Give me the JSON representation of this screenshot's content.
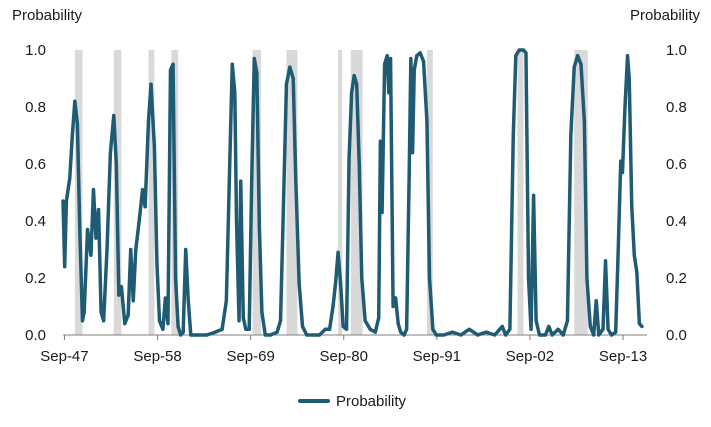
{
  "chart_data": {
    "type": "line",
    "title": "",
    "ylabel_left": "Probability",
    "ylabel_right": "Probability",
    "ylim": [
      0,
      1
    ],
    "yticks": [
      "0.0",
      "0.2",
      "0.4",
      "0.6",
      "0.8",
      "1.0"
    ],
    "xlim": [
      1947.5,
      2016.5
    ],
    "xticks": [
      {
        "label": "Sep-47",
        "x": 1947.67
      },
      {
        "label": "Sep-58",
        "x": 1958.67
      },
      {
        "label": "Sep-69",
        "x": 1969.67
      },
      {
        "label": "Sep-80",
        "x": 1980.67
      },
      {
        "label": "Sep-91",
        "x": 1991.67
      },
      {
        "label": "Sep-02",
        "x": 2002.67
      },
      {
        "label": "Sep-13",
        "x": 2013.67
      }
    ],
    "recession_shading_color": "#d9d9d9",
    "recessions": [
      [
        1948.9,
        1949.8
      ],
      [
        1953.5,
        1954.4
      ],
      [
        1957.6,
        1958.3
      ],
      [
        1960.3,
        1961.1
      ],
      [
        1969.9,
        1970.9
      ],
      [
        1973.9,
        1975.2
      ],
      [
        1980.0,
        1980.5
      ],
      [
        1981.5,
        1982.9
      ],
      [
        1990.5,
        1991.2
      ],
      [
        2001.2,
        2001.9
      ],
      [
        2007.9,
        2009.5
      ]
    ],
    "series": [
      {
        "name": "Probability",
        "color": "#1f5b73",
        "points": [
          [
            1947.5,
            0.47
          ],
          [
            1947.7,
            0.24
          ],
          [
            1947.9,
            0.47
          ],
          [
            1948.3,
            0.55
          ],
          [
            1948.6,
            0.7
          ],
          [
            1948.9,
            0.82
          ],
          [
            1949.2,
            0.74
          ],
          [
            1949.5,
            0.35
          ],
          [
            1949.8,
            0.05
          ],
          [
            1950.0,
            0.08
          ],
          [
            1950.4,
            0.37
          ],
          [
            1950.8,
            0.28
          ],
          [
            1951.1,
            0.51
          ],
          [
            1951.4,
            0.34
          ],
          [
            1951.7,
            0.44
          ],
          [
            1952.0,
            0.08
          ],
          [
            1952.3,
            0.05
          ],
          [
            1952.7,
            0.3
          ],
          [
            1953.1,
            0.64
          ],
          [
            1953.5,
            0.77
          ],
          [
            1953.8,
            0.6
          ],
          [
            1954.1,
            0.14
          ],
          [
            1954.4,
            0.17
          ],
          [
            1954.8,
            0.04
          ],
          [
            1955.2,
            0.07
          ],
          [
            1955.5,
            0.3
          ],
          [
            1955.8,
            0.12
          ],
          [
            1956.1,
            0.3
          ],
          [
            1956.5,
            0.4
          ],
          [
            1956.9,
            0.51
          ],
          [
            1957.2,
            0.45
          ],
          [
            1957.6,
            0.75
          ],
          [
            1957.9,
            0.88
          ],
          [
            1958.3,
            0.66
          ],
          [
            1958.6,
            0.25
          ],
          [
            1958.9,
            0.05
          ],
          [
            1959.3,
            0.02
          ],
          [
            1959.6,
            0.13
          ],
          [
            1959.9,
            0.04
          ],
          [
            1960.2,
            0.93
          ],
          [
            1960.5,
            0.95
          ],
          [
            1960.8,
            0.2
          ],
          [
            1961.1,
            0.03
          ],
          [
            1961.4,
            0.0
          ],
          [
            1961.7,
            0.01
          ],
          [
            1962.0,
            0.3
          ],
          [
            1962.3,
            0.12
          ],
          [
            1962.6,
            0.0
          ],
          [
            1963.5,
            0.0
          ],
          [
            1964.5,
            0.0
          ],
          [
            1965.5,
            0.01
          ],
          [
            1966.3,
            0.02
          ],
          [
            1966.8,
            0.12
          ],
          [
            1967.2,
            0.6
          ],
          [
            1967.5,
            0.95
          ],
          [
            1967.8,
            0.85
          ],
          [
            1968.0,
            0.4
          ],
          [
            1968.3,
            0.05
          ],
          [
            1968.5,
            0.54
          ],
          [
            1968.8,
            0.06
          ],
          [
            1969.1,
            0.02
          ],
          [
            1969.5,
            0.02
          ],
          [
            1969.8,
            0.55
          ],
          [
            1970.1,
            0.97
          ],
          [
            1970.4,
            0.92
          ],
          [
            1970.7,
            0.38
          ],
          [
            1971.0,
            0.08
          ],
          [
            1971.4,
            0.0
          ],
          [
            1972.0,
            0.0
          ],
          [
            1972.8,
            0.01
          ],
          [
            1973.2,
            0.05
          ],
          [
            1973.5,
            0.4
          ],
          [
            1973.9,
            0.88
          ],
          [
            1974.3,
            0.94
          ],
          [
            1974.7,
            0.9
          ],
          [
            1975.0,
            0.55
          ],
          [
            1975.4,
            0.18
          ],
          [
            1975.8,
            0.03
          ],
          [
            1976.3,
            0.0
          ],
          [
            1977.0,
            0.0
          ],
          [
            1977.8,
            0.0
          ],
          [
            1978.5,
            0.02
          ],
          [
            1979.0,
            0.02
          ],
          [
            1979.4,
            0.1
          ],
          [
            1979.7,
            0.18
          ],
          [
            1980.0,
            0.29
          ],
          [
            1980.3,
            0.18
          ],
          [
            1980.6,
            0.03
          ],
          [
            1981.0,
            0.02
          ],
          [
            1981.3,
            0.62
          ],
          [
            1981.6,
            0.85
          ],
          [
            1981.9,
            0.91
          ],
          [
            1982.2,
            0.88
          ],
          [
            1982.5,
            0.6
          ],
          [
            1982.8,
            0.2
          ],
          [
            1983.2,
            0.05
          ],
          [
            1983.8,
            0.02
          ],
          [
            1984.4,
            0.01
          ],
          [
            1984.8,
            0.06
          ],
          [
            1985.0,
            0.68
          ],
          [
            1985.2,
            0.43
          ],
          [
            1985.5,
            0.95
          ],
          [
            1985.8,
            0.98
          ],
          [
            1986.0,
            0.85
          ],
          [
            1986.2,
            0.97
          ],
          [
            1986.5,
            0.1
          ],
          [
            1986.8,
            0.13
          ],
          [
            1987.1,
            0.04
          ],
          [
            1987.4,
            0.01
          ],
          [
            1987.8,
            0.0
          ],
          [
            1988.1,
            0.02
          ],
          [
            1988.4,
            0.56
          ],
          [
            1988.6,
            0.97
          ],
          [
            1988.8,
            0.64
          ],
          [
            1989.0,
            0.93
          ],
          [
            1989.3,
            0.98
          ],
          [
            1989.7,
            0.99
          ],
          [
            1990.1,
            0.96
          ],
          [
            1990.5,
            0.75
          ],
          [
            1990.8,
            0.2
          ],
          [
            1991.2,
            0.02
          ],
          [
            1991.6,
            0.0
          ],
          [
            1992.5,
            0.0
          ],
          [
            1993.5,
            0.01
          ],
          [
            1994.5,
            0.0
          ],
          [
            1995.5,
            0.02
          ],
          [
            1996.5,
            0.0
          ],
          [
            1997.5,
            0.01
          ],
          [
            1998.5,
            0.0
          ],
          [
            1999.4,
            0.03
          ],
          [
            1999.8,
            0.0
          ],
          [
            2000.3,
            0.02
          ],
          [
            2000.7,
            0.7
          ],
          [
            2001.0,
            0.98
          ],
          [
            2001.4,
            1.0
          ],
          [
            2001.9,
            1.0
          ],
          [
            2002.2,
            0.99
          ],
          [
            2002.5,
            0.2
          ],
          [
            2002.8,
            0.02
          ],
          [
            2003.1,
            0.49
          ],
          [
            2003.4,
            0.05
          ],
          [
            2003.8,
            0.0
          ],
          [
            2004.5,
            0.0
          ],
          [
            2004.9,
            0.03
          ],
          [
            2005.3,
            0.0
          ],
          [
            2006.0,
            0.02
          ],
          [
            2006.6,
            0.0
          ],
          [
            2007.1,
            0.05
          ],
          [
            2007.5,
            0.7
          ],
          [
            2007.9,
            0.94
          ],
          [
            2008.3,
            0.98
          ],
          [
            2008.7,
            0.95
          ],
          [
            2009.1,
            0.75
          ],
          [
            2009.4,
            0.2
          ],
          [
            2009.8,
            0.03
          ],
          [
            2010.2,
            0.0
          ],
          [
            2010.5,
            0.12
          ],
          [
            2010.8,
            0.0
          ],
          [
            2011.3,
            0.02
          ],
          [
            2011.6,
            0.26
          ],
          [
            2011.9,
            0.02
          ],
          [
            2012.3,
            0.0
          ],
          [
            2012.8,
            0.01
          ],
          [
            2013.1,
            0.3
          ],
          [
            2013.4,
            0.61
          ],
          [
            2013.6,
            0.57
          ],
          [
            2013.9,
            0.8
          ],
          [
            2014.2,
            0.98
          ],
          [
            2014.4,
            0.9
          ],
          [
            2014.7,
            0.45
          ],
          [
            2015.0,
            0.28
          ],
          [
            2015.3,
            0.22
          ],
          [
            2015.6,
            0.04
          ],
          [
            2015.9,
            0.03
          ]
        ]
      }
    ],
    "legend": {
      "placement": "bottom-center",
      "label": "Probability"
    }
  }
}
